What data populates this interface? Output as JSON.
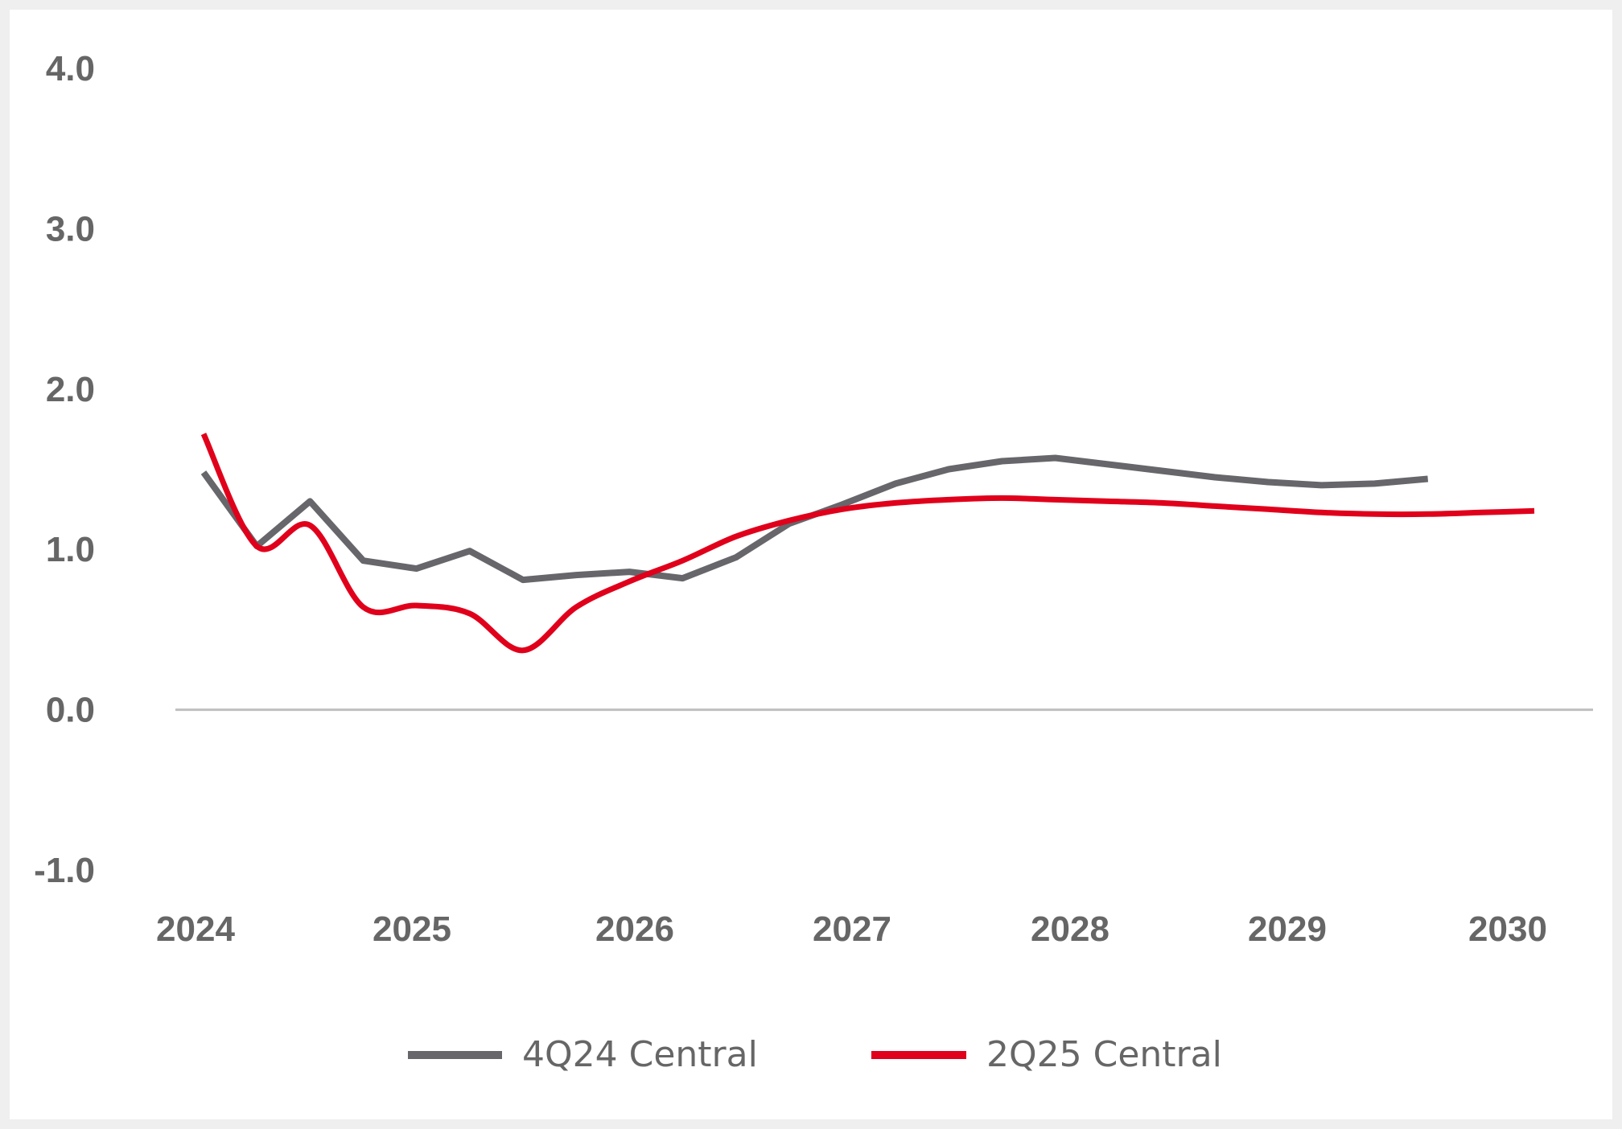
{
  "chart_data": {
    "type": "line",
    "title": "",
    "xlabel": "",
    "ylabel": "",
    "ylim": [
      -1.0,
      4.0
    ],
    "y_ticks": [
      "4.0",
      "3.0",
      "2.0",
      "1.0",
      "0.0",
      "-1.0"
    ],
    "x_ticks": [
      "2024",
      "2025",
      "2026",
      "2027",
      "2028",
      "2029",
      "2030"
    ],
    "grid": false,
    "zero_line": true,
    "legend_position": "bottom",
    "series": [
      {
        "name": "4Q24 Central",
        "color": "#66666b",
        "smooth": false,
        "points": [
          [
            2024.0,
            1.48
          ],
          [
            2024.25,
            1.02
          ],
          [
            2024.5,
            1.3
          ],
          [
            2024.75,
            0.93
          ],
          [
            2025.0,
            0.88
          ],
          [
            2025.25,
            0.99
          ],
          [
            2025.5,
            0.81
          ],
          [
            2025.75,
            0.84
          ],
          [
            2026.0,
            0.86
          ],
          [
            2026.25,
            0.82
          ],
          [
            2026.5,
            0.95
          ],
          [
            2026.75,
            1.16
          ],
          [
            2027.0,
            1.28
          ],
          [
            2027.25,
            1.41
          ],
          [
            2027.5,
            1.5
          ],
          [
            2027.75,
            1.55
          ],
          [
            2028.0,
            1.57
          ],
          [
            2028.25,
            1.53
          ],
          [
            2028.5,
            1.49
          ],
          [
            2028.75,
            1.45
          ],
          [
            2029.0,
            1.42
          ],
          [
            2029.25,
            1.4
          ],
          [
            2029.5,
            1.41
          ],
          [
            2029.75,
            1.44
          ]
        ]
      },
      {
        "name": "2Q25 Central",
        "color": "#e0001b",
        "smooth": true,
        "points": [
          [
            2024.0,
            1.72
          ],
          [
            2024.25,
            1.02
          ],
          [
            2024.5,
            1.15
          ],
          [
            2024.75,
            0.64
          ],
          [
            2025.0,
            0.65
          ],
          [
            2025.25,
            0.6
          ],
          [
            2025.5,
            0.37
          ],
          [
            2025.75,
            0.64
          ],
          [
            2026.0,
            0.8
          ],
          [
            2026.25,
            0.93
          ],
          [
            2026.5,
            1.08
          ],
          [
            2026.75,
            1.18
          ],
          [
            2027.0,
            1.25
          ],
          [
            2027.25,
            1.29
          ],
          [
            2027.5,
            1.31
          ],
          [
            2027.75,
            1.32
          ],
          [
            2028.0,
            1.31
          ],
          [
            2028.25,
            1.3
          ],
          [
            2028.5,
            1.29
          ],
          [
            2028.75,
            1.27
          ],
          [
            2029.0,
            1.25
          ],
          [
            2029.25,
            1.23
          ],
          [
            2029.5,
            1.22
          ],
          [
            2029.75,
            1.22
          ],
          [
            2030.0,
            1.23
          ],
          [
            2030.25,
            1.24
          ]
        ]
      }
    ]
  }
}
